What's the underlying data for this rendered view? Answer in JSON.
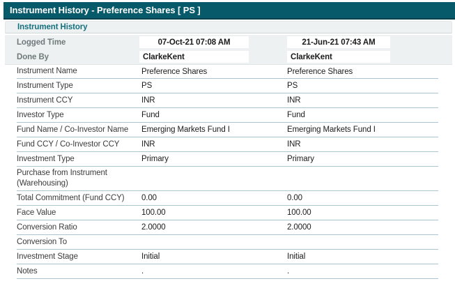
{
  "window": {
    "title": "Instrument History - Preference Shares [ PS ]"
  },
  "section": {
    "title": "Instrument History"
  },
  "history_header": {
    "rows": [
      {
        "label": "Logged Time",
        "values": [
          "07-Oct-21 07:08 AM",
          "21-Jun-21 07:43 AM"
        ],
        "centered": true
      },
      {
        "label": "Done By",
        "values": [
          "ClarkeKent",
          "ClarkeKent"
        ],
        "centered": false
      }
    ]
  },
  "table": {
    "rows": [
      {
        "label": "Instrument Name",
        "values": [
          "Preference Shares",
          "Preference Shares"
        ]
      },
      {
        "label": "Instrument Type",
        "values": [
          "PS",
          "PS"
        ]
      },
      {
        "label": "Instrument CCY",
        "values": [
          "INR",
          "INR"
        ]
      },
      {
        "label": "Investor Type",
        "values": [
          "Fund",
          "Fund"
        ]
      },
      {
        "label": "Fund Name / Co-Investor Name",
        "values": [
          "Emerging Markets Fund I",
          "Emerging Markets Fund I"
        ]
      },
      {
        "label": "Fund CCY / Co-Investor CCY",
        "values": [
          "INR",
          "INR"
        ]
      },
      {
        "label": "Investment Type",
        "values": [
          "Primary",
          "Primary"
        ]
      },
      {
        "label": "Purchase from Instrument (Warehousing)",
        "values": [
          "",
          ""
        ]
      },
      {
        "label": "Total Commitment (Fund CCY)",
        "values": [
          "0.00",
          "0.00"
        ]
      },
      {
        "label": "Face Value",
        "values": [
          "100.00",
          "100.00"
        ]
      },
      {
        "label": "Conversion Ratio",
        "values": [
          "2.0000",
          "2.0000"
        ]
      },
      {
        "label": "Conversion To",
        "values": [
          "",
          ""
        ]
      },
      {
        "label": "Investment Stage",
        "values": [
          "Initial",
          "Initial"
        ]
      },
      {
        "label": "Notes",
        "values": [
          ".",
          "."
        ]
      }
    ]
  },
  "colors": {
    "title_bar_bg": "#075a6a",
    "section_text": "#15707e",
    "bar_bg": "#eef1f1",
    "divider": "#a9c6d0",
    "muted_label": "#6f797b"
  }
}
